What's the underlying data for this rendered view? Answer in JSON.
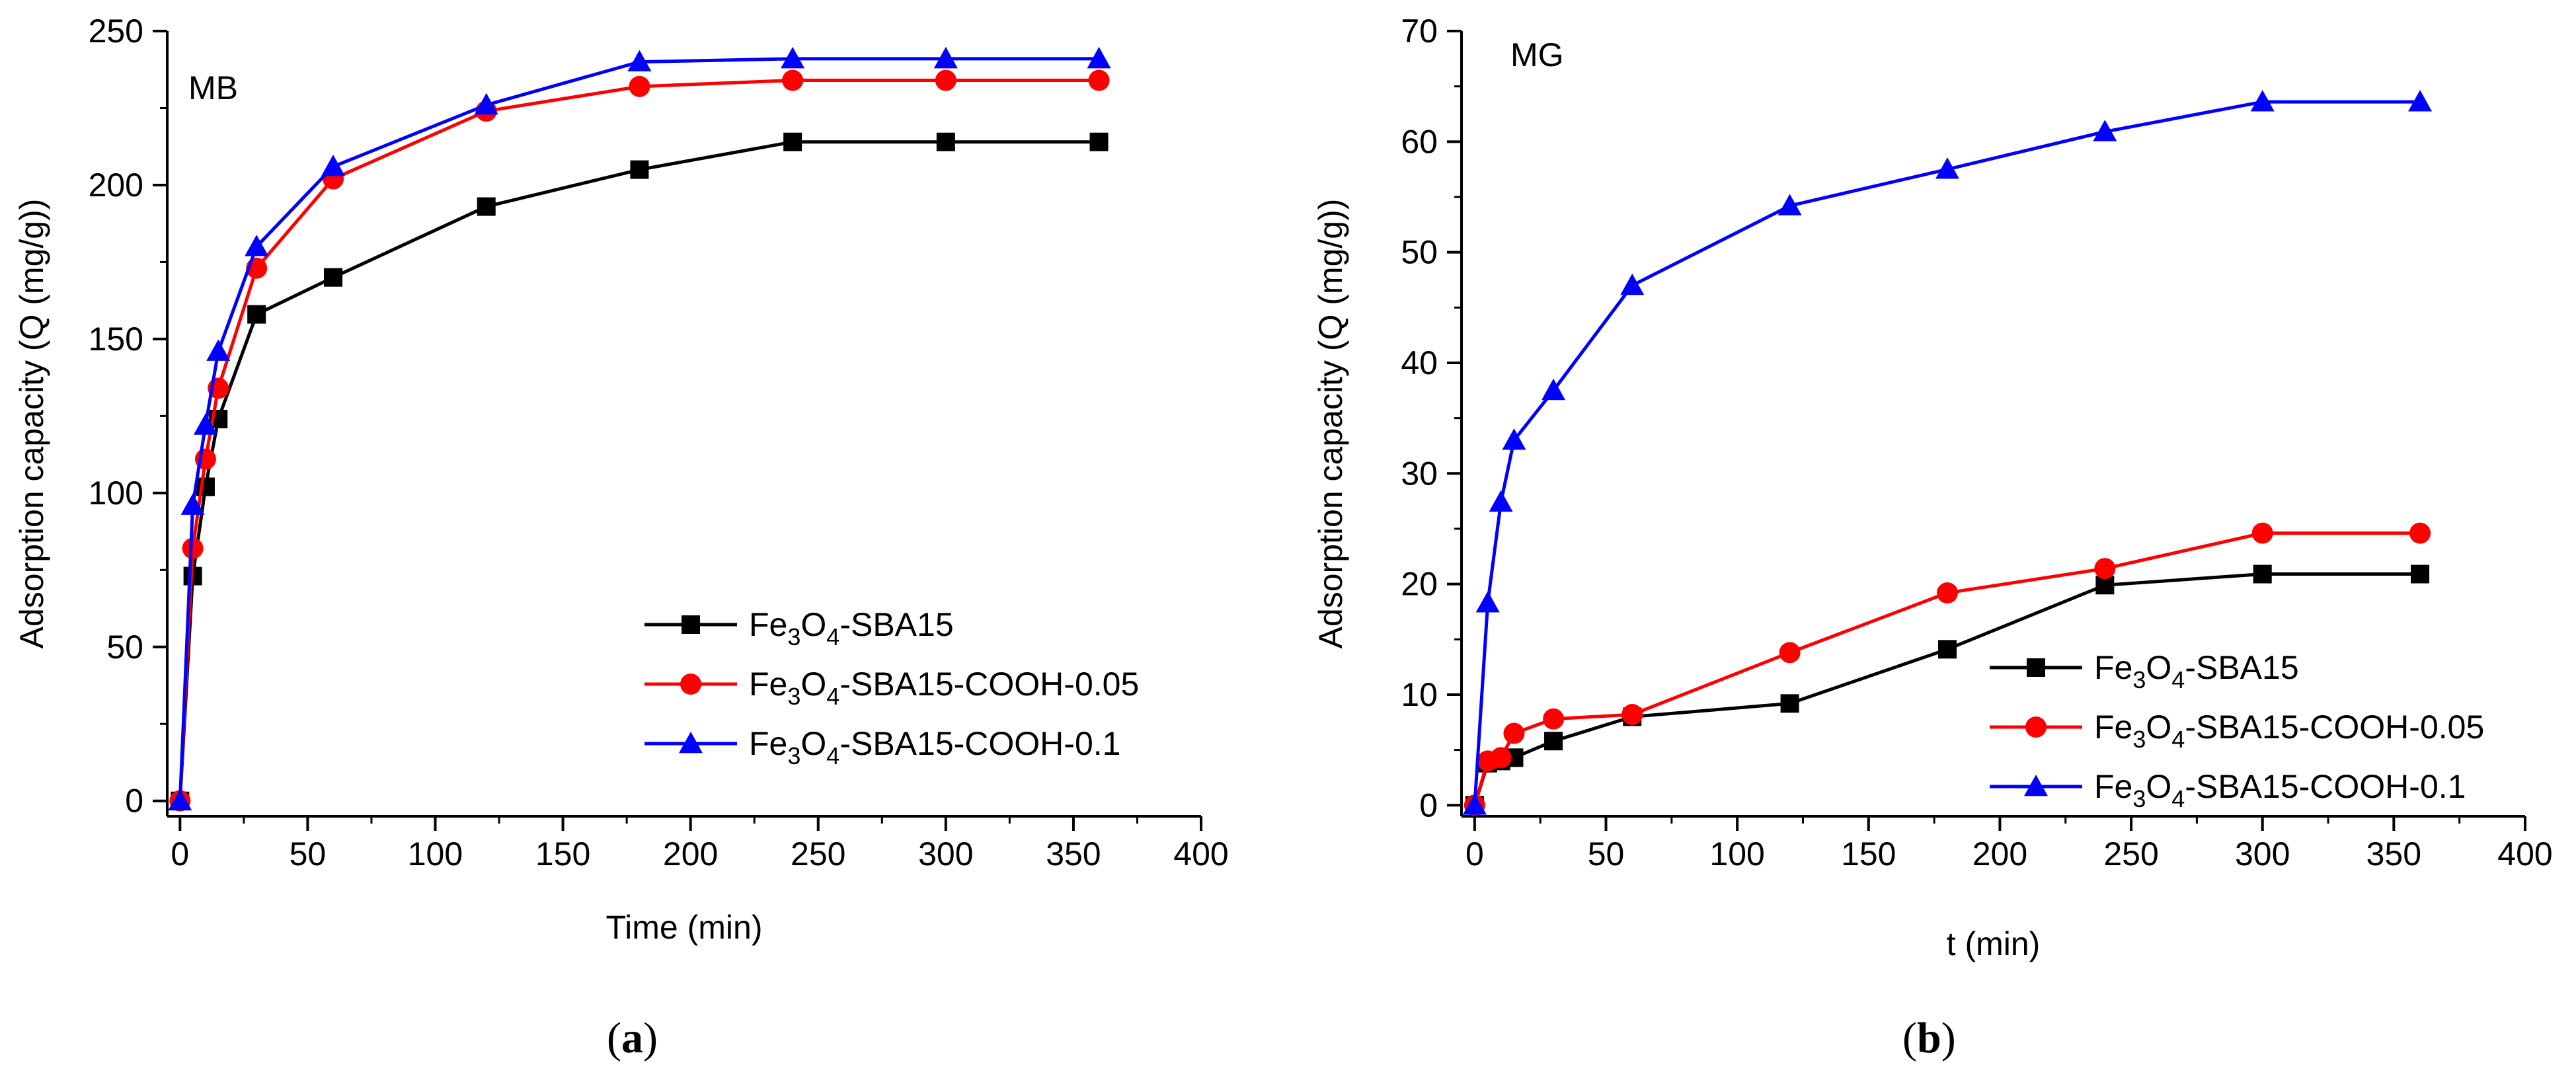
{
  "chart_data": [
    {
      "type": "line",
      "panel_label": "MB",
      "caption": {
        "open": "(",
        "letter": "a",
        "close": ")"
      },
      "xlabel": "Time (min)",
      "ylabel": "Adsorption capacity (Q (mg/g))",
      "xlim": [
        -5,
        400
      ],
      "ylim": [
        -5,
        250
      ],
      "xticks": [
        0,
        50,
        100,
        150,
        200,
        250,
        300,
        350,
        400
      ],
      "yticks": [
        0,
        50,
        100,
        150,
        200,
        250
      ],
      "legend_position": "lower-right",
      "series": [
        {
          "name": "Fe3O4-SBA15",
          "label": {
            "base": "Fe",
            "sub1": "3",
            "mid": "O",
            "sub2": "4",
            "suffix": "-SBA15"
          },
          "color": "#000000",
          "marker": "square",
          "x": [
            0,
            5,
            10,
            15,
            30,
            60,
            120,
            180,
            240,
            300,
            360
          ],
          "y": [
            0,
            73,
            102,
            124,
            158,
            170,
            193,
            205,
            214,
            214,
            214
          ]
        },
        {
          "name": "Fe3O4-SBA15-COOH-0.05",
          "label": {
            "base": "Fe",
            "sub1": "3",
            "mid": "O",
            "sub2": "4",
            "suffix": "-SBA15-COOH-0.05"
          },
          "color": "#ff0000",
          "marker": "circle",
          "x": [
            0,
            5,
            10,
            15,
            30,
            60,
            120,
            180,
            240,
            300,
            360
          ],
          "y": [
            0,
            82,
            111,
            134,
            173,
            202,
            224,
            232,
            234,
            234,
            234
          ]
        },
        {
          "name": "Fe3O4-SBA15-COOH-0.1",
          "label": {
            "base": "Fe",
            "sub1": "3",
            "mid": "O",
            "sub2": "4",
            "suffix": "-SBA15-COOH-0.1"
          },
          "color": "#0000ff",
          "marker": "triangle",
          "x": [
            0,
            5,
            10,
            15,
            30,
            60,
            120,
            180,
            240,
            300,
            360
          ],
          "y": [
            0,
            96,
            122,
            146,
            180,
            206,
            226,
            240,
            241,
            241,
            241
          ]
        }
      ]
    },
    {
      "type": "line",
      "panel_label": "MG",
      "caption": {
        "open": "(",
        "letter": "b",
        "close": ")"
      },
      "xlabel": "t (min)",
      "ylabel": "Adsorption capacity (Q (mg/g))",
      "xlim": [
        -5,
        400
      ],
      "ylim": [
        -1,
        70
      ],
      "xticks": [
        0,
        50,
        100,
        150,
        200,
        250,
        300,
        350,
        400
      ],
      "yticks": [
        0,
        10,
        20,
        30,
        40,
        50,
        60,
        70
      ],
      "legend_position": "lower-right",
      "series": [
        {
          "name": "Fe3O4-SBA15",
          "label": {
            "base": "Fe",
            "sub1": "3",
            "mid": "O",
            "sub2": "4",
            "suffix": "-SBA15"
          },
          "color": "#000000",
          "marker": "square",
          "x": [
            0,
            5,
            10,
            15,
            30,
            60,
            120,
            180,
            240,
            300,
            360
          ],
          "y": [
            0,
            3.8,
            4.0,
            4.3,
            5.8,
            8.0,
            9.2,
            14.1,
            19.9,
            20.9,
            20.9
          ]
        },
        {
          "name": "Fe3O4-SBA15-COOH-0.05",
          "label": {
            "base": "Fe",
            "sub1": "3",
            "mid": "O",
            "sub2": "4",
            "suffix": "-SBA15-COOH-0.05"
          },
          "color": "#ff0000",
          "marker": "circle",
          "x": [
            0,
            5,
            10,
            15,
            30,
            60,
            120,
            180,
            240,
            300,
            360
          ],
          "y": [
            0,
            4.0,
            4.3,
            6.5,
            7.8,
            8.2,
            13.8,
            19.2,
            21.4,
            24.6,
            24.6
          ]
        },
        {
          "name": "Fe3O4-SBA15-COOH-0.1",
          "label": {
            "base": "Fe",
            "sub1": "3",
            "mid": "O",
            "sub2": "4",
            "suffix": "-SBA15-COOH-0.1"
          },
          "color": "#0000ff",
          "marker": "triangle",
          "x": [
            0,
            5,
            10,
            15,
            30,
            60,
            120,
            180,
            240,
            300,
            360
          ],
          "y": [
            0,
            18.3,
            27.4,
            33.0,
            37.5,
            47.0,
            54.2,
            57.5,
            60.9,
            63.6,
            63.6
          ]
        }
      ]
    }
  ]
}
